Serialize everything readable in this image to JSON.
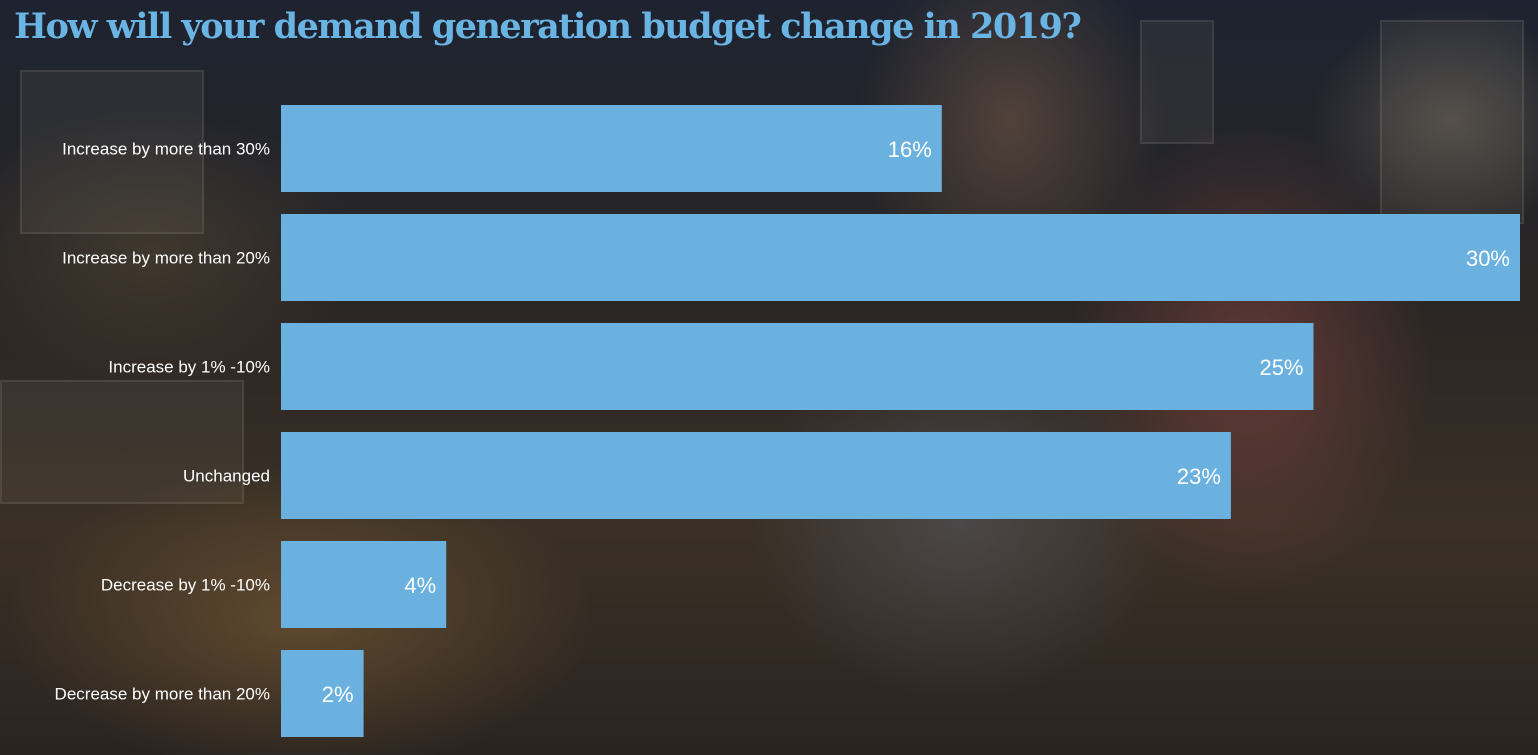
{
  "chart_data": {
    "type": "bar",
    "orientation": "horizontal",
    "title": "How will your demand generation budget change in 2019?",
    "categories": [
      "Increase by more than 30%",
      "Increase by more than 20%",
      "Increase by 1% -10%",
      "Unchanged",
      "Decrease by 1% -10%",
      "Decrease by more than 20%"
    ],
    "values": [
      16,
      30,
      25,
      23,
      4,
      2
    ],
    "value_labels": [
      "16%",
      "30%",
      "25%",
      "23%",
      "4%",
      "2%"
    ],
    "unit": "%",
    "xlim": [
      0,
      30
    ],
    "grid": false,
    "legend": "none",
    "bar_color": "#6ab1e0",
    "title_color": "#6ab4e4"
  }
}
